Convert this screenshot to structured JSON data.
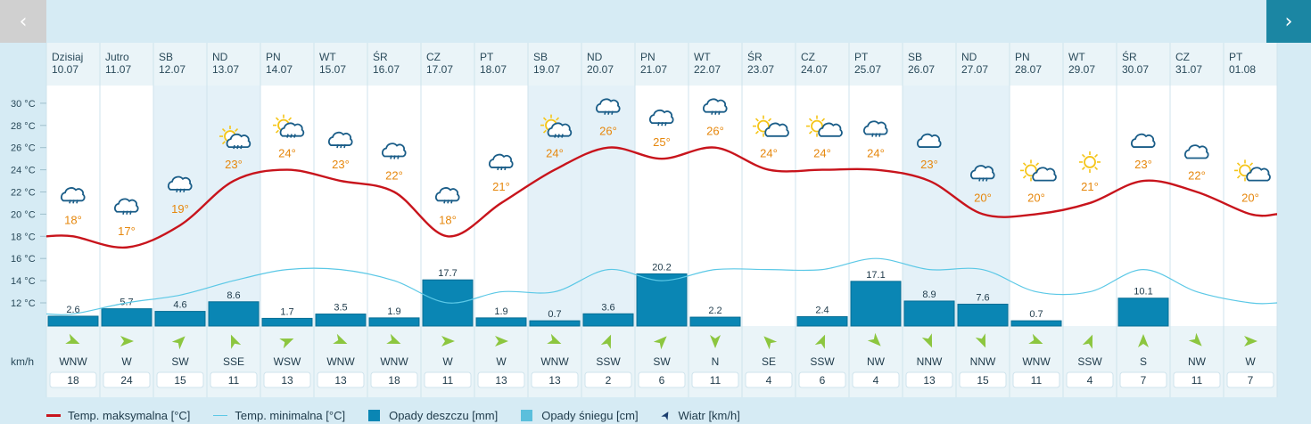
{
  "nav": {
    "prev_label": "‹",
    "next_label": "›"
  },
  "units": {
    "wind": "km/h"
  },
  "colors": {
    "max_temp": "#c8141c",
    "min_temp": "#5bc8e6",
    "rain": "#0a86b4",
    "snow": "#5bbfdc",
    "wind_arrow": "#8cc63f",
    "temp_label": "#e6870c",
    "icon": "#1a5d88",
    "sun": "#f5c518"
  },
  "legend": [
    {
      "label": "Temp. maksymalna [°C]",
      "swatch": "line-max"
    },
    {
      "label": "Temp. minimalna [°C]",
      "swatch": "line-min"
    },
    {
      "label": "Opady deszczu [mm]",
      "swatch": "box-rain"
    },
    {
      "label": "Opady śniegu [cm]",
      "swatch": "box-snow"
    },
    {
      "label": "Wiatr [km/h]",
      "swatch": "arrow-wind"
    }
  ],
  "chart_data": {
    "type": "line",
    "y_ticks": [
      "30 °C",
      "28 °C",
      "26 °C",
      "24 °C",
      "22 °C",
      "20 °C",
      "18 °C",
      "16 °C",
      "14 °C",
      "12 °C"
    ],
    "ylim": [
      10,
      31
    ],
    "days": [
      {
        "dow": "Dzisiaj",
        "date": "10.07",
        "weekend": false,
        "icon": "rain-cloud",
        "tmax": 18,
        "tmin": 11,
        "rain": 2.6,
        "wind_dir": "WNW",
        "wind_speed": 18
      },
      {
        "dow": "Jutro",
        "date": "11.07",
        "weekend": false,
        "icon": "rain-cloud",
        "tmax": 17,
        "tmin": 12,
        "rain": 5.7,
        "wind_dir": "W",
        "wind_speed": 24
      },
      {
        "dow": "SB",
        "date": "12.07",
        "weekend": true,
        "icon": "rain-cloud",
        "tmax": 19,
        "tmin": 12.7,
        "rain": 4.6,
        "wind_dir": "SW",
        "wind_speed": 15
      },
      {
        "dow": "ND",
        "date": "13.07",
        "weekend": true,
        "icon": "sun-storm",
        "tmax": 23,
        "tmin": 14,
        "rain": 8.6,
        "wind_dir": "SSE",
        "wind_speed": 11
      },
      {
        "dow": "PN",
        "date": "14.07",
        "weekend": false,
        "icon": "sun-storm",
        "tmax": 24,
        "tmin": 15,
        "rain": 1.7,
        "wind_dir": "WSW",
        "wind_speed": 13
      },
      {
        "dow": "WT",
        "date": "15.07",
        "weekend": false,
        "icon": "rain-cloud",
        "tmax": 23,
        "tmin": 15,
        "rain": 3.5,
        "wind_dir": "WNW",
        "wind_speed": 13
      },
      {
        "dow": "ŚR",
        "date": "16.07",
        "weekend": false,
        "icon": "rain-cloud",
        "tmax": 22,
        "tmin": 14,
        "rain": 1.9,
        "wind_dir": "WNW",
        "wind_speed": 18
      },
      {
        "dow": "CZ",
        "date": "17.07",
        "weekend": false,
        "icon": "rain-cloud",
        "tmax": 18,
        "tmin": 12,
        "rain": 17.7,
        "wind_dir": "W",
        "wind_speed": 11
      },
      {
        "dow": "PT",
        "date": "18.07",
        "weekend": false,
        "icon": "rain-cloud",
        "tmax": 21,
        "tmin": 13,
        "rain": 1.9,
        "wind_dir": "W",
        "wind_speed": 13
      },
      {
        "dow": "SB",
        "date": "19.07",
        "weekend": true,
        "icon": "sun-rain",
        "tmax": 24,
        "tmin": 13,
        "rain": 0.7,
        "wind_dir": "WNW",
        "wind_speed": 13
      },
      {
        "dow": "ND",
        "date": "20.07",
        "weekend": true,
        "icon": "rain-cloud",
        "tmax": 26,
        "tmin": 15,
        "rain": 3.6,
        "wind_dir": "SSW",
        "wind_speed": 2
      },
      {
        "dow": "PN",
        "date": "21.07",
        "weekend": false,
        "icon": "rain-cloud",
        "tmax": 25,
        "tmin": 14,
        "rain": 20.2,
        "wind_dir": "SW",
        "wind_speed": 6
      },
      {
        "dow": "WT",
        "date": "22.07",
        "weekend": false,
        "icon": "rain-cloud",
        "tmax": 26,
        "tmin": 15,
        "rain": 2.2,
        "wind_dir": "N",
        "wind_speed": 11
      },
      {
        "dow": "ŚR",
        "date": "23.07",
        "weekend": false,
        "icon": "sun-cloud",
        "tmax": 24,
        "tmin": 15,
        "rain": null,
        "wind_dir": "SE",
        "wind_speed": 4
      },
      {
        "dow": "CZ",
        "date": "24.07",
        "weekend": false,
        "icon": "sun-cloud",
        "tmax": 24,
        "tmin": 15,
        "rain": 2.4,
        "wind_dir": "SSW",
        "wind_speed": 6
      },
      {
        "dow": "PT",
        "date": "25.07",
        "weekend": false,
        "icon": "storm-cloud",
        "tmax": 24,
        "tmin": 16,
        "rain": 17.1,
        "wind_dir": "NW",
        "wind_speed": 4
      },
      {
        "dow": "SB",
        "date": "26.07",
        "weekend": true,
        "icon": "cloud",
        "tmax": 23,
        "tmin": 15,
        "rain": 8.9,
        "wind_dir": "NNW",
        "wind_speed": 13
      },
      {
        "dow": "ND",
        "date": "27.07",
        "weekend": true,
        "icon": "rain-cloud",
        "tmax": 20,
        "tmin": 15,
        "rain": 7.6,
        "wind_dir": "NNW",
        "wind_speed": 15
      },
      {
        "dow": "PN",
        "date": "28.07",
        "weekend": false,
        "icon": "sun-cloud",
        "tmax": 20,
        "tmin": 13,
        "rain": 0.7,
        "wind_dir": "WNW",
        "wind_speed": 11
      },
      {
        "dow": "WT",
        "date": "29.07",
        "weekend": false,
        "icon": "sun",
        "tmax": 21,
        "tmin": 13,
        "rain": null,
        "wind_dir": "SSW",
        "wind_speed": 4
      },
      {
        "dow": "ŚR",
        "date": "30.07",
        "weekend": false,
        "icon": "cloud",
        "tmax": 23,
        "tmin": 15,
        "rain": 10.1,
        "wind_dir": "S",
        "wind_speed": 7
      },
      {
        "dow": "CZ",
        "date": "31.07",
        "weekend": false,
        "icon": "cloud",
        "tmax": 22,
        "tmin": 13,
        "rain": null,
        "wind_dir": "NW",
        "wind_speed": 11
      },
      {
        "dow": "PT",
        "date": "01.08",
        "weekend": false,
        "icon": "sun-cloud",
        "tmax": 20,
        "tmin": 12,
        "rain": null,
        "wind_dir": "W",
        "wind_speed": 7
      }
    ]
  }
}
